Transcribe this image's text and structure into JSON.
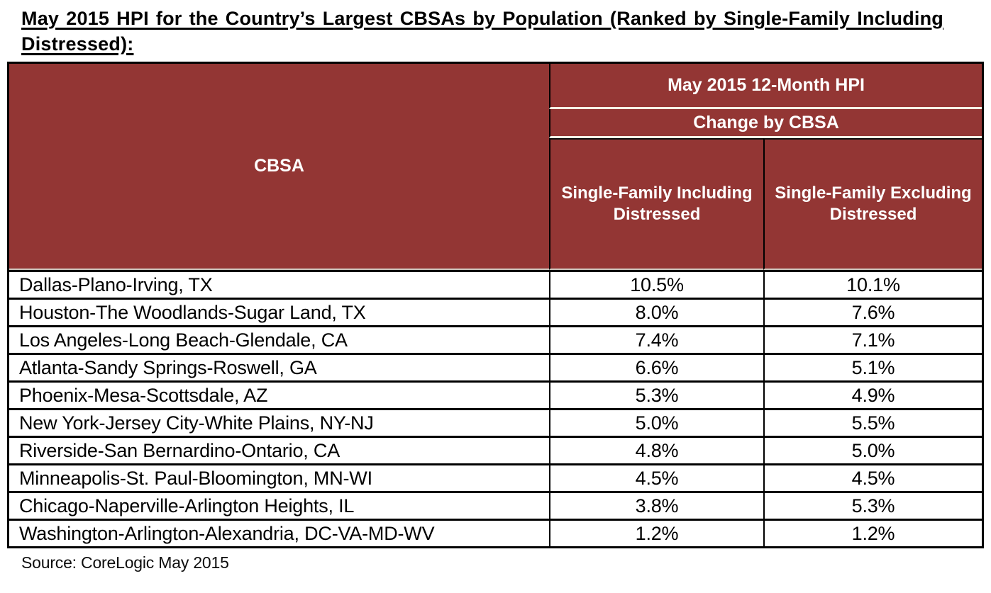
{
  "page": {
    "title": "May 2015 HPI for the Country’s Largest CBSAs by Population (Ranked by Single-Family Including Distressed):",
    "source_note": "Source: CoreLogic May 2015"
  },
  "colors": {
    "header_background": "#933634",
    "header_text": "#ffffff",
    "table_border": "#000000",
    "header_divider_light": "#f5f0e6",
    "body_text": "#000000",
    "page_background": "#ffffff"
  },
  "chart_data": {
    "type": "table",
    "header": {
      "cbsa_label": "CBSA",
      "group_label": "May 2015 12-Month HPI",
      "subgroup_label": "Change by CBSA",
      "col_including_label": "Single-Family Including Distressed",
      "col_excluding_label": "Single-Family Excluding Distressed"
    },
    "rows": [
      {
        "cbsa": "Dallas-Plano-Irving, TX",
        "including_distressed": "10.5%",
        "excluding_distressed": "10.1%"
      },
      {
        "cbsa": "Houston-The Woodlands-Sugar Land, TX",
        "including_distressed": "8.0%",
        "excluding_distressed": "7.6%"
      },
      {
        "cbsa": "Los Angeles-Long Beach-Glendale, CA",
        "including_distressed": "7.4%",
        "excluding_distressed": "7.1%"
      },
      {
        "cbsa": "Atlanta-Sandy Springs-Roswell, GA",
        "including_distressed": "6.6%",
        "excluding_distressed": "5.1%"
      },
      {
        "cbsa": "Phoenix-Mesa-Scottsdale, AZ",
        "including_distressed": "5.3%",
        "excluding_distressed": "4.9%"
      },
      {
        "cbsa": "New York-Jersey City-White Plains, NY-NJ",
        "including_distressed": "5.0%",
        "excluding_distressed": "5.5%"
      },
      {
        "cbsa": "Riverside-San Bernardino-Ontario, CA",
        "including_distressed": "4.8%",
        "excluding_distressed": "5.0%"
      },
      {
        "cbsa": "Minneapolis-St. Paul-Bloomington, MN-WI",
        "including_distressed": "4.5%",
        "excluding_distressed": "4.5%"
      },
      {
        "cbsa": "Chicago-Naperville-Arlington Heights, IL",
        "including_distressed": "3.8%",
        "excluding_distressed": "5.3%"
      },
      {
        "cbsa": "Washington-Arlington-Alexandria, DC-VA-MD-WV",
        "including_distressed": "1.2%",
        "excluding_distressed": "1.2%"
      }
    ]
  }
}
